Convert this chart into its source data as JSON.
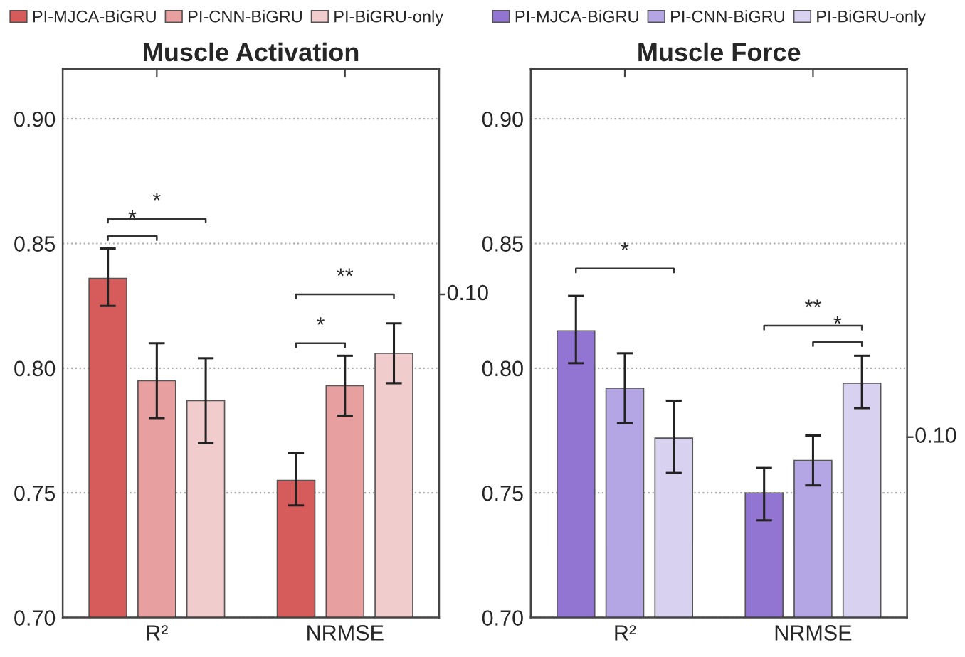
{
  "chart_data": [
    {
      "type": "bar",
      "title": "Muscle Activation",
      "categories": [
        "R²",
        "NRMSE"
      ],
      "series": [
        {
          "name": "PI-MJCA-BiGRU",
          "color": "#d65c5c",
          "values": [
            0.836,
            0.755
          ],
          "errors": [
            [
              0.825,
              0.848
            ],
            [
              0.745,
              0.766
            ]
          ]
        },
        {
          "name": "PI-CNN-BiGRU",
          "color": "#e89f9f",
          "values": [
            0.795,
            0.793
          ],
          "errors": [
            [
              0.78,
              0.81
            ],
            [
              0.781,
              0.805
            ]
          ]
        },
        {
          "name": "PI-BiGRU-only",
          "color": "#f1cccc",
          "values": [
            0.787,
            0.806
          ],
          "errors": [
            [
              0.77,
              0.804
            ],
            [
              0.794,
              0.818
            ]
          ]
        }
      ],
      "ylim": [
        0.7,
        0.92
      ],
      "yticks": [
        {
          "value": 0.7,
          "label": "0.70"
        },
        {
          "value": 0.75,
          "label": "0.75"
        },
        {
          "value": 0.8,
          "label": "0.80"
        },
        {
          "value": 0.85,
          "label": "0.85"
        },
        {
          "value": 0.9,
          "label": "0.90"
        }
      ],
      "grid": "y",
      "legend": "top",
      "annotations": [
        "*",
        "*",
        "*",
        "**",
        "0.10"
      ]
    },
    {
      "type": "bar",
      "title": "Muscle Force",
      "categories": [
        "R²",
        "NRMSE"
      ],
      "series": [
        {
          "name": "PI-MJCA-BiGRU",
          "color": "#9274d2",
          "values": [
            0.815,
            0.75
          ],
          "errors": [
            [
              0.802,
              0.829
            ],
            [
              0.739,
              0.76
            ]
          ]
        },
        {
          "name": "PI-CNN-BiGRU",
          "color": "#b4a5e4",
          "values": [
            0.792,
            0.763
          ],
          "errors": [
            [
              0.778,
              0.806
            ],
            [
              0.753,
              0.773
            ]
          ]
        },
        {
          "name": "PI-BiGRU-only",
          "color": "#d9d1f0",
          "values": [
            0.772,
            0.794
          ],
          "errors": [
            [
              0.758,
              0.787
            ],
            [
              0.784,
              0.805
            ]
          ]
        }
      ],
      "ylim": [
        0.7,
        0.92
      ],
      "yticks": [
        {
          "value": 0.7,
          "label": "0.70"
        },
        {
          "value": 0.75,
          "label": "0.75"
        },
        {
          "value": 0.8,
          "label": "0.80"
        },
        {
          "value": 0.85,
          "label": "0.85"
        },
        {
          "value": 0.9,
          "label": "0.90"
        }
      ],
      "grid": "y",
      "legend": "top",
      "annotations": [
        "*",
        "**",
        "*",
        "0.10"
      ]
    }
  ]
}
